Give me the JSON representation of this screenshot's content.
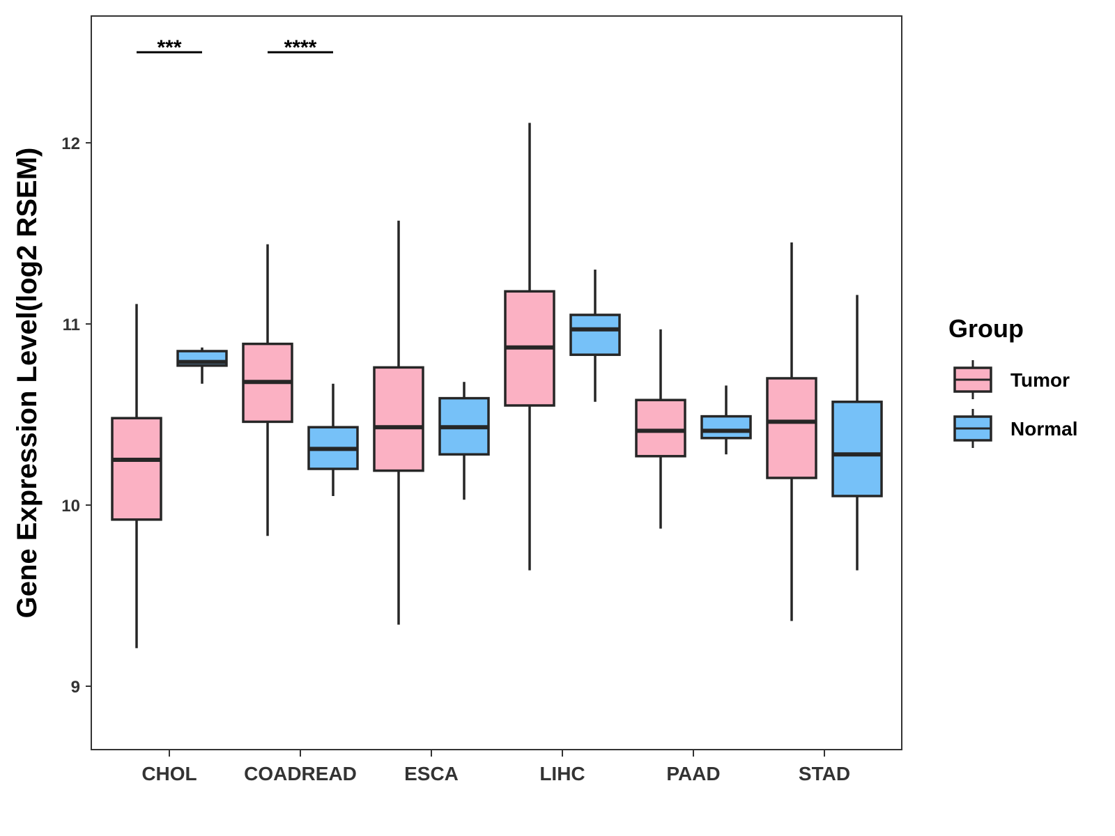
{
  "chart_data": {
    "type": "boxplot",
    "title": "",
    "xlabel": "",
    "ylabel": "Gene Expression Level(log2 RSEM)",
    "ylim": [
      8.65,
      12.7
    ],
    "yticks": [
      9,
      10,
      11,
      12
    ],
    "categories": [
      "CHOL",
      "COADREAD",
      "ESCA",
      "LIHC",
      "PAAD",
      "STAD"
    ],
    "legend": {
      "title": "Group",
      "position": "right"
    },
    "series": [
      {
        "name": "Tumor",
        "color": "#FBB1C3",
        "boxes": [
          {
            "min": 9.21,
            "q1": 9.92,
            "median": 10.25,
            "q3": 10.48,
            "max": 11.11
          },
          {
            "min": 9.83,
            "q1": 10.46,
            "median": 10.68,
            "q3": 10.89,
            "max": 11.44
          },
          {
            "min": 9.34,
            "q1": 10.19,
            "median": 10.43,
            "q3": 10.76,
            "max": 11.57
          },
          {
            "min": 9.64,
            "q1": 10.55,
            "median": 10.87,
            "q3": 11.18,
            "max": 12.11
          },
          {
            "min": 9.87,
            "q1": 10.27,
            "median": 10.41,
            "q3": 10.58,
            "max": 10.97
          },
          {
            "min": 9.36,
            "q1": 10.15,
            "median": 10.46,
            "q3": 10.7,
            "max": 11.45
          }
        ]
      },
      {
        "name": "Normal",
        "color": "#76C1F8",
        "boxes": [
          {
            "min": 10.67,
            "q1": 10.77,
            "median": 10.79,
            "q3": 10.85,
            "max": 10.87
          },
          {
            "min": 10.05,
            "q1": 10.2,
            "median": 10.31,
            "q3": 10.43,
            "max": 10.67
          },
          {
            "min": 10.03,
            "q1": 10.28,
            "median": 10.43,
            "q3": 10.59,
            "max": 10.68
          },
          {
            "min": 10.57,
            "q1": 10.83,
            "median": 10.97,
            "q3": 11.05,
            "max": 11.3
          },
          {
            "min": 10.28,
            "q1": 10.37,
            "median": 10.41,
            "q3": 10.49,
            "max": 10.66
          },
          {
            "min": 9.64,
            "q1": 10.05,
            "median": 10.28,
            "q3": 10.57,
            "max": 11.16
          }
        ]
      }
    ],
    "annotations": [
      {
        "category": "CHOL",
        "label": "***"
      },
      {
        "category": "COADREAD",
        "label": "****"
      }
    ]
  }
}
